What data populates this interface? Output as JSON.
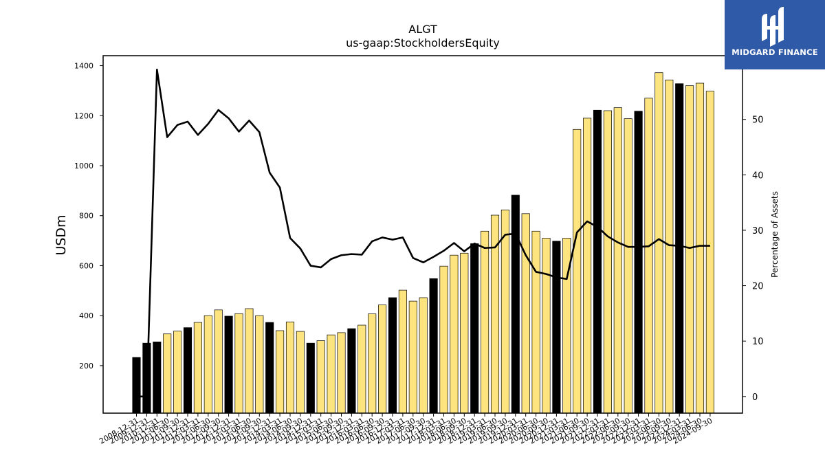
{
  "chart_data": {
    "type": "bar+line",
    "title": "ALGT",
    "subtitle": "us-gaap:StockholdersEquity",
    "ylabel_left": "USDm",
    "ylabel_right": "Percentage of Assets",
    "y_left_ticks": [
      200,
      400,
      600,
      800,
      1000,
      1200,
      1400
    ],
    "y_right_ticks": [
      0,
      10,
      20,
      30,
      40,
      50
    ],
    "ylim_left": [
      10,
      1440
    ],
    "ylim_right": [
      -3,
      61.5
    ],
    "categories": [
      "2008-12-31",
      "2009-12-31",
      "2010-12-31",
      "2011-06-30",
      "2011-09-30",
      "2011-12-31",
      "2012-03-31",
      "2012-06-30",
      "2012-09-30",
      "2012-12-31",
      "2013-03-31",
      "2013-06-30",
      "2013-09-30",
      "2013-12-31",
      "2014-03-31",
      "2014-06-30",
      "2014-09-30",
      "2014-12-31",
      "2015-03-31",
      "2015-06-30",
      "2015-09-30",
      "2015-12-31",
      "2016-03-31",
      "2016-06-30",
      "2016-09-30",
      "2016-12-31",
      "2017-03-31",
      "2017-06-30",
      "2017-09-30",
      "2017-12-31",
      "2018-03-31",
      "2018-06-30",
      "2018-09-30",
      "2018-12-31",
      "2019-03-31",
      "2019-06-30",
      "2019-09-30",
      "2019-12-31",
      "2020-03-31",
      "2020-06-30",
      "2020-09-30",
      "2020-12-31",
      "2021-03-31",
      "2021-06-30",
      "2021-09-30",
      "2021-12-31",
      "2022-03-31",
      "2022-06-30",
      "2022-09-30",
      "2022-12-31",
      "2023-03-31",
      "2023-06-30",
      "2023-09-30",
      "2023-12-31",
      "2024-03-31",
      "2024-06-30",
      "2024-09-30"
    ],
    "x_tick_labels": [
      "2008-12-31",
      "2009-12-31",
      "2010-12-31",
      "2011-06-30",
      "2011-09-30",
      "2011-12-31",
      "2012-03-31",
      "2012-06-30",
      "2012-09-30",
      "2012-12-31",
      "2013-03-31",
      "2013-06-30",
      "2013-09-30",
      "2013-12-31",
      "2014-03-31",
      "2014-06-30",
      "2014-09-30",
      "2014-12-31",
      "2015-03-31",
      "2015-06-30",
      "2015-09-30",
      "2015-12-31",
      "2016-03-31",
      "2016-06-30",
      "2016-09-30",
      "2016-12-31",
      "2017-03-31",
      "2017-06-30",
      "2017-09-30",
      "2017-12-31",
      "2018-03-31",
      "2018-06-30",
      "2018-09-30",
      "2018-12-31",
      "2019-03-31",
      "2019-06-30",
      "2019-09-30",
      "2019-12-31",
      "2020-03-31",
      "2020-06-30",
      "2020-09-30",
      "2020-12-31",
      "2021-03-31",
      "2021-06-30",
      "2021-09-30",
      "2021-12-31",
      "2022-03-31",
      "2022-06-30",
      "2022-09-30",
      "2022-12-31",
      "2023-03-31",
      "2023-06-30",
      "2023-09-30",
      "2023-12-31",
      "2024-03-31",
      "2024-06-30",
      "2024-09-30"
    ],
    "bar_values": [
      233,
      290,
      295,
      327,
      338,
      352,
      373,
      400,
      423,
      398,
      408,
      428,
      400,
      373,
      340,
      375,
      337,
      290,
      300,
      323,
      332,
      348,
      362,
      407,
      443,
      472,
      502,
      458,
      472,
      548,
      598,
      642,
      650,
      688,
      738,
      802,
      823,
      882,
      808,
      738,
      710,
      698,
      710,
      1145,
      1190,
      1222,
      1220,
      1232,
      1188,
      1218,
      1270,
      1372,
      1343,
      1328,
      1320,
      1330,
      1298
    ],
    "bar_kind": [
      "fy",
      "fy",
      "fy",
      "q",
      "q",
      "fy",
      "q",
      "q",
      "q",
      "fy",
      "q",
      "q",
      "q",
      "fy",
      "q",
      "q",
      "q",
      "fy",
      "q",
      "q",
      "q",
      "fy",
      "q",
      "q",
      "q",
      "fy",
      "q",
      "q",
      "q",
      "fy",
      "q",
      "q",
      "q",
      "fy",
      "q",
      "q",
      "q",
      "fy",
      "q",
      "q",
      "q",
      "fy",
      "q",
      "q",
      "q",
      "fy",
      "q",
      "q",
      "q",
      "fy",
      "q",
      "q",
      "q",
      "fy",
      "q",
      "q",
      "q"
    ],
    "line_values": [
      0,
      0,
      59,
      46.8,
      49,
      49.6,
      47.2,
      49.2,
      51.7,
      50.2,
      47.8,
      49.8,
      47.7,
      40.4,
      37.7,
      28.6,
      26.7,
      23.6,
      23.3,
      24.8,
      25.5,
      25.7,
      25.6,
      28,
      28.7,
      28.3,
      28.7,
      25,
      24.2,
      25.2,
      26.3,
      27.7,
      26.2,
      27.6,
      26.8,
      26.9,
      29.2,
      29.4,
      25.5,
      22.5,
      22.1,
      21.5,
      21.2,
      29.6,
      31.6,
      30.6,
      28.9,
      27.8,
      27,
      27,
      27.1,
      28.4,
      27.3,
      27.2,
      26.8,
      27.2,
      27.2
    ],
    "colors": {
      "quarter_bar": "#fde47e",
      "fiscal_year_bar": "#000000",
      "line": "#000000",
      "logo_bg": "#2f5aa8"
    }
  },
  "logo": {
    "text": "MIDGARD FINANCE"
  }
}
